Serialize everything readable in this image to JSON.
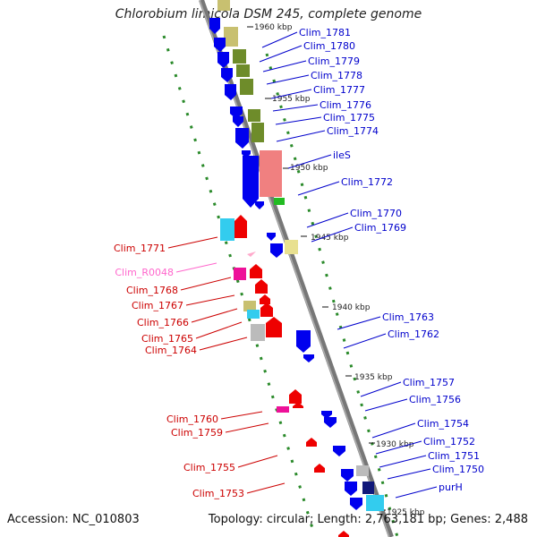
{
  "title": "Chlorobium limicola DSM 245, complete genome",
  "footer": {
    "accession": "Accession: NC_010803",
    "summary": "Topology: circular; Length: 2,763,181 bp; Genes: 2,488"
  },
  "colors": {
    "forward_label": "#0000cc",
    "reverse_label": "#cc0000",
    "rna_label": "#ff66cc",
    "backbone": "#888888"
  },
  "scale_labels": [
    "1960 kbp",
    "1955 kbp",
    "1950 kbp",
    "1945 kbp",
    "1940 kbp",
    "1935 kbp",
    "1930 kbp",
    "1925 kbp"
  ],
  "forward_gene_labels": [
    "Clim_1781",
    "Clim_1780",
    "Clim_1779",
    "Clim_1778",
    "Clim_1777",
    "Clim_1776",
    "Clim_1775",
    "Clim_1774",
    "ileS",
    "Clim_1772",
    "Clim_1770",
    "Clim_1769",
    "Clim_1763",
    "Clim_1762",
    "Clim_1757",
    "Clim_1756",
    "Clim_1754",
    "Clim_1752",
    "Clim_1751",
    "Clim_1750",
    "purH"
  ],
  "reverse_gene_labels": [
    "Clim_1771",
    "Clim_R0048",
    "Clim_1768",
    "Clim_1767",
    "Clim_1766",
    "Clim_1765",
    "Clim_1764",
    "Clim_1760",
    "Clim_1759",
    "Clim_1755",
    "Clim_1753"
  ]
}
